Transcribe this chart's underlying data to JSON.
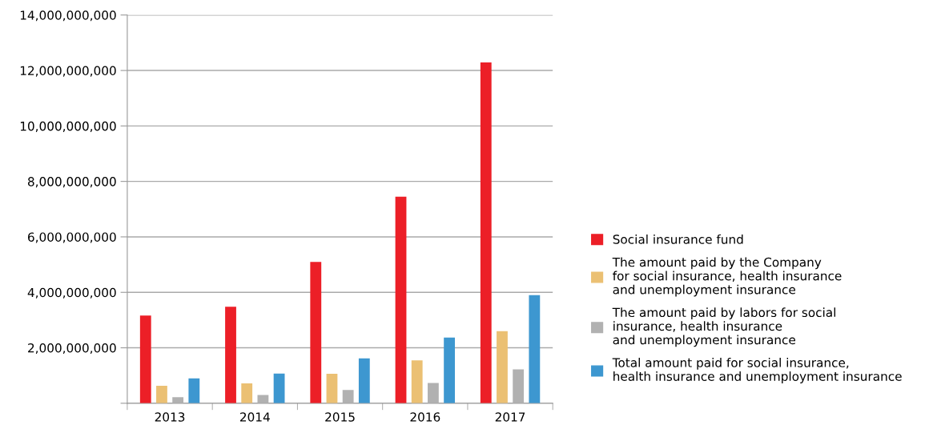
{
  "chart_data": {
    "type": "bar",
    "categories": [
      "2013",
      "2014",
      "2015",
      "2016",
      "2017"
    ],
    "series": [
      {
        "name": "Social insurance fund",
        "color": "#ec1f27",
        "values": [
          3160000000,
          3480000000,
          5100000000,
          7450000000,
          12290000000
        ]
      },
      {
        "name": "The amount paid by the Company\nfor social insurance, health insurance\nand unemployment insurance",
        "color": "#ebc073",
        "values": [
          630000000,
          720000000,
          1060000000,
          1550000000,
          2600000000
        ]
      },
      {
        "name": "The amount paid by labors for social\ninsurance, health insurance\nand unemployment insurance",
        "color": "#b1b1b1",
        "values": [
          220000000,
          300000000,
          480000000,
          730000000,
          1220000000
        ]
      },
      {
        "name": "Total amount paid for social insurance,\nhealth insurance and unemployment insurance",
        "color": "#3d97d0",
        "values": [
          900000000,
          1070000000,
          1620000000,
          2370000000,
          3900000000
        ]
      }
    ],
    "ylim": [
      0,
      14000000000
    ],
    "yticks": [
      {
        "value": 0,
        "label": null
      },
      {
        "value": 2000000000,
        "label": "2,000,000,000"
      },
      {
        "value": 4000000000,
        "label": "4,000,000,000"
      },
      {
        "value": 6000000000,
        "label": "6,000,000,000"
      },
      {
        "value": 8000000000,
        "label": "8,000,000,000"
      },
      {
        "value": 10000000000,
        "label": "10,000,000,000"
      },
      {
        "value": 12000000000,
        "label": "12,000,000,000"
      },
      {
        "value": 14000000000,
        "label": "14,000,000,000"
      }
    ],
    "grid": "y",
    "legend": "right"
  }
}
